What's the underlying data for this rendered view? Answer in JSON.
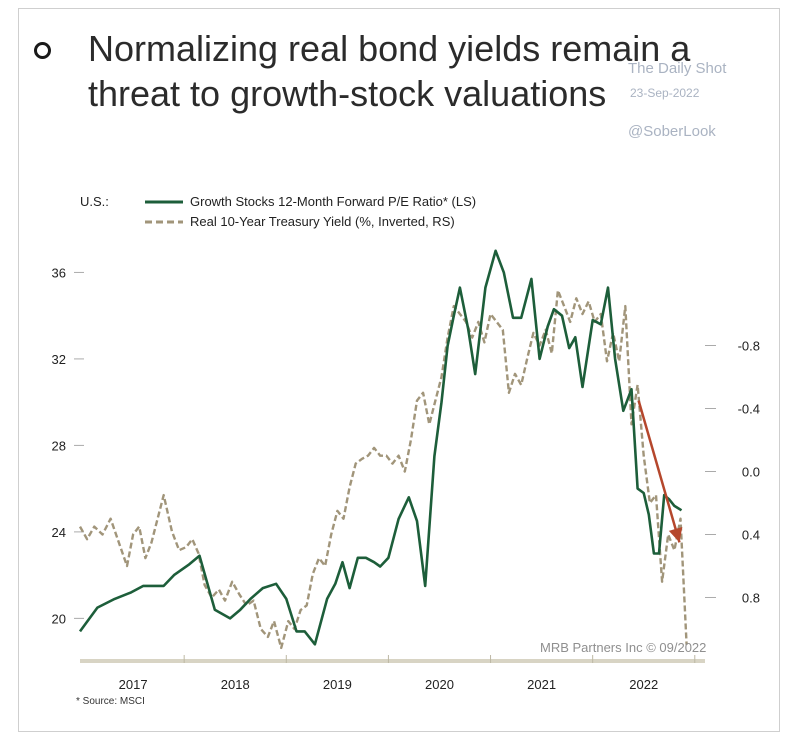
{
  "header": {
    "title": "Normalizing real bond yields remain a threat to growth-stock valuations"
  },
  "watermark": {
    "line1": "The Daily Shot",
    "date": "23-Sep-2022",
    "handle": "@SoberLook"
  },
  "legend": {
    "region": "U.S.:"
  },
  "footer": {
    "source": "* Source: MSCI",
    "credit": "MRB Partners Inc © 09/2022"
  },
  "colors": {
    "growth": "#1d5e3a",
    "yield": "#a1957a",
    "arrow": "#b5472c",
    "baseline": "#d8d4c4"
  },
  "chart_data": {
    "type": "line",
    "x_ticks": [
      "2017",
      "2018",
      "2019",
      "2020",
      "2021",
      "2022"
    ],
    "y_left": {
      "ticks": [
        20,
        24,
        28,
        32,
        36
      ],
      "range": [
        19,
        37.5
      ]
    },
    "y_right": {
      "ticks": [
        "-0.8",
        "-0.4",
        "0.0",
        "0.4",
        "0.8"
      ],
      "tick_values": [
        -0.8,
        -0.4,
        0.0,
        0.4,
        0.8
      ],
      "range": [
        -1.47,
        1.07
      ],
      "inverted": true
    },
    "series": [
      {
        "name": "Growth Stocks 12-Month Forward P/E Ratio* (LS)",
        "axis": "left",
        "style": "solid",
        "x": [
          2016.48,
          2016.65,
          2016.82,
          2016.98,
          2017.1,
          2017.2,
          2017.3,
          2017.4,
          2017.55,
          2017.65,
          2017.8,
          2017.95,
          2018.05,
          2018.15,
          2018.27,
          2018.4,
          2018.5,
          2018.6,
          2018.68,
          2018.78,
          2018.9,
          2018.98,
          2019.05,
          2019.12,
          2019.2,
          2019.28,
          2019.36,
          2019.42,
          2019.5,
          2019.6,
          2019.7,
          2019.78,
          2019.86,
          2019.95,
          2020.02,
          2020.08,
          2020.14,
          2020.2,
          2020.28,
          2020.35,
          2020.45,
          2020.55,
          2020.63,
          2020.72,
          2020.8,
          2020.9,
          2020.98,
          2021.06,
          2021.12,
          2021.2,
          2021.27,
          2021.33,
          2021.4,
          2021.5,
          2021.58,
          2021.65,
          2021.72,
          2021.8,
          2021.88,
          2021.94,
          2022.0,
          2022.05,
          2022.1,
          2022.15,
          2022.2,
          2022.25,
          2022.3,
          2022.37
        ],
        "values": [
          19.4,
          20.5,
          20.9,
          21.2,
          21.5,
          21.5,
          21.5,
          22.0,
          22.5,
          22.9,
          20.4,
          20.0,
          20.4,
          20.9,
          21.4,
          21.6,
          20.9,
          19.4,
          19.4,
          18.8,
          20.9,
          21.6,
          22.6,
          21.4,
          22.8,
          22.8,
          22.6,
          22.4,
          22.8,
          24.6,
          25.6,
          24.5,
          21.5,
          27.5,
          30.0,
          32.6,
          34.0,
          35.3,
          33.4,
          31.3,
          35.3,
          37.0,
          36.0,
          33.9,
          33.9,
          35.7,
          32.0,
          33.5,
          34.3,
          34.0,
          32.5,
          33.0,
          30.7,
          33.8,
          33.6,
          35.3,
          32.0,
          29.6,
          30.6,
          26.0,
          25.8,
          24.8,
          23.0,
          23.0,
          25.7,
          25.5,
          25.2,
          25.0
        ]
      },
      {
        "name": "Real 10-Year Treasury Yield (%, Inverted, RS)",
        "axis": "right",
        "style": "dashed",
        "x": [
          2016.48,
          2016.55,
          2016.62,
          2016.7,
          2016.78,
          2016.86,
          2016.94,
          2017.0,
          2017.06,
          2017.12,
          2017.18,
          2017.24,
          2017.3,
          2017.38,
          2017.45,
          2017.52,
          2017.58,
          2017.64,
          2017.7,
          2017.77,
          2017.84,
          2017.9,
          2017.97,
          2018.04,
          2018.11,
          2018.18,
          2018.25,
          2018.32,
          2018.38,
          2018.45,
          2018.52,
          2018.58,
          2018.64,
          2018.7,
          2018.76,
          2018.82,
          2018.88,
          2018.94,
          2019.0,
          2019.06,
          2019.12,
          2019.18,
          2019.24,
          2019.3,
          2019.36,
          2019.42,
          2019.48,
          2019.54,
          2019.6,
          2019.66,
          2019.72,
          2019.78,
          2019.84,
          2019.9,
          2019.96,
          2020.02,
          2020.08,
          2020.14,
          2020.2,
          2020.26,
          2020.32,
          2020.38,
          2020.44,
          2020.5,
          2020.56,
          2020.62,
          2020.68,
          2020.74,
          2020.8,
          2020.86,
          2020.92,
          2020.98,
          2021.04,
          2021.1,
          2021.16,
          2021.22,
          2021.28,
          2021.34,
          2021.4,
          2021.46,
          2021.52,
          2021.58,
          2021.64,
          2021.7,
          2021.76,
          2021.82,
          2021.88,
          2021.94,
          2022.0,
          2022.06,
          2022.12,
          2022.18,
          2022.24,
          2022.3,
          2022.36,
          2022.42
        ],
        "values": [
          0.35,
          0.43,
          0.35,
          0.4,
          0.3,
          0.45,
          0.6,
          0.4,
          0.35,
          0.55,
          0.45,
          0.3,
          0.15,
          0.38,
          0.5,
          0.48,
          0.43,
          0.52,
          0.72,
          0.8,
          0.75,
          0.82,
          0.7,
          0.78,
          0.85,
          0.82,
          1.0,
          1.05,
          0.95,
          1.12,
          0.95,
          1.0,
          0.88,
          0.85,
          0.65,
          0.55,
          0.6,
          0.4,
          0.25,
          0.3,
          0.1,
          -0.05,
          -0.08,
          -0.1,
          -0.15,
          -0.1,
          -0.1,
          -0.05,
          -0.1,
          0.0,
          -0.2,
          -0.45,
          -0.5,
          -0.3,
          -0.45,
          -0.6,
          -0.85,
          -1.05,
          -1.0,
          -0.95,
          -0.85,
          -0.95,
          -0.82,
          -1.0,
          -0.95,
          -0.9,
          -0.5,
          -0.62,
          -0.55,
          -0.72,
          -0.88,
          -0.8,
          -0.9,
          -0.75,
          -1.15,
          -1.05,
          -0.95,
          -1.1,
          -1.0,
          -1.08,
          -0.95,
          -1.0,
          -0.7,
          -0.88,
          -0.7,
          -1.05,
          -0.3,
          -0.55,
          -0.1,
          0.2,
          0.15,
          0.7,
          0.4,
          0.5,
          0.3,
          1.1
        ]
      }
    ],
    "annotations": [
      {
        "type": "arrow",
        "from": [
          2021.95,
          -0.45
        ],
        "to": [
          2022.35,
          0.45
        ]
      }
    ],
    "grid": false,
    "legend_position": "top-left"
  }
}
